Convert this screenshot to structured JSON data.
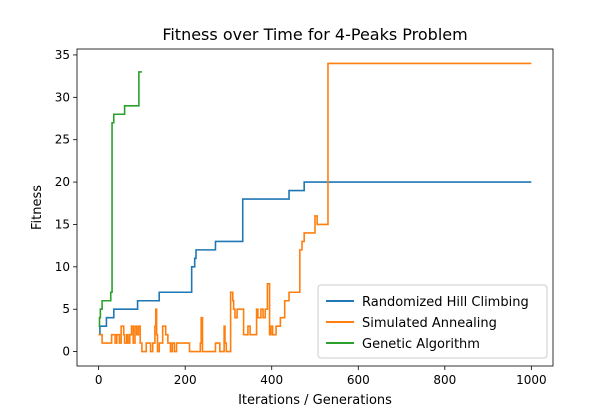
{
  "chart_data": {
    "type": "line",
    "title": "Fitness over Time for 4-Peaks Problem",
    "xlabel": "Iterations / Generations",
    "ylabel": "Fitness",
    "xlim": [
      -50,
      1050
    ],
    "ylim": [
      -1.7,
      35.7
    ],
    "xticks": [
      0,
      200,
      400,
      600,
      800,
      1000
    ],
    "yticks": [
      0,
      5,
      10,
      15,
      20,
      25,
      30,
      35
    ],
    "grid": false,
    "legend_position": "lower-right",
    "series": [
      {
        "name": "Randomized Hill Climbing",
        "color": "#1f77b4",
        "step": true,
        "x": [
          0,
          3,
          18,
          35,
          90,
          140,
          215,
          222,
          225,
          270,
          333,
          440,
          475,
          1000
        ],
        "y": [
          2,
          3,
          4,
          5,
          6,
          7,
          10,
          11,
          12,
          13,
          18,
          19,
          20,
          20
        ]
      },
      {
        "name": "Simulated Annealing",
        "color": "#ff7f0e",
        "step": true,
        "x": [
          0,
          8,
          30,
          38,
          42,
          48,
          52,
          58,
          60,
          65,
          68,
          72,
          76,
          80,
          84,
          88,
          92,
          96,
          100,
          110,
          120,
          125,
          130,
          132,
          134,
          136,
          140,
          148,
          155,
          160,
          166,
          170,
          175,
          180,
          210,
          235,
          237,
          240,
          270,
          280,
          290,
          292,
          295,
          305,
          310,
          312,
          315,
          320,
          335,
          345,
          350,
          365,
          368,
          375,
          380,
          385,
          390,
          395,
          398,
          402,
          410,
          420,
          430,
          440,
          445,
          460,
          465,
          470,
          475,
          480,
          500,
          505,
          510,
          530,
          1000
        ],
        "y": [
          2,
          1,
          2,
          1,
          2,
          1,
          3,
          2,
          1,
          2,
          1,
          2,
          3,
          1,
          3,
          2,
          3,
          1,
          0,
          1,
          0,
          1,
          3,
          5,
          2,
          0,
          1,
          3,
          2,
          1,
          0,
          1,
          0,
          1,
          0,
          1,
          4,
          0,
          1,
          0,
          3,
          1,
          0,
          7,
          6,
          5,
          4,
          5,
          2,
          3,
          2,
          5,
          4,
          5,
          4,
          5,
          8,
          2,
          3,
          2,
          3,
          4,
          6,
          7,
          7,
          7,
          12,
          13,
          14,
          14,
          16,
          15,
          15,
          34,
          34
        ]
      },
      {
        "name": "Genetic Algorithm",
        "color": "#2ca02c",
        "step": true,
        "x": [
          0,
          2,
          4,
          6,
          8,
          12,
          20,
          28,
          31,
          33,
          35,
          55,
          60,
          90,
          93,
          100
        ],
        "y": [
          3,
          4,
          5,
          5,
          6,
          6,
          6,
          7,
          27,
          27,
          28,
          28,
          29,
          29,
          33,
          33
        ]
      }
    ]
  }
}
